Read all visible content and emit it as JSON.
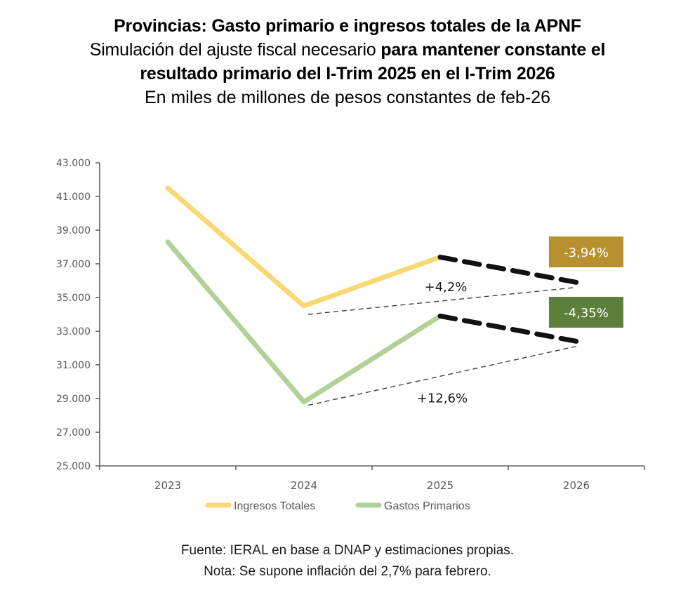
{
  "header": {
    "title": "Provincias: Gasto primario e ingresos totales de la APNF",
    "subtitle_plain": "Simulación del ajuste fiscal necesario ",
    "subtitle_bold_1": "para mantener constante el",
    "subtitle_bold_2": "resultado primario del I-Trim 2025 en el I-Trim 2026",
    "units": "En miles de millones de pesos constantes de feb-26"
  },
  "footer": {
    "source": "Fuente: IERAL en base a DNAP y estimaciones propias.",
    "note": "Nota: Se supone inflación del 2,7% para febrero."
  },
  "chart_data": {
    "type": "line",
    "title": "Provincias: Gasto primario e ingresos totales de la APNF",
    "xlabel": "",
    "ylabel": "",
    "categories": [
      "2023",
      "2024",
      "2025",
      "2026"
    ],
    "ylim": [
      25000,
      43000
    ],
    "yticks": [
      25000,
      27000,
      29000,
      31000,
      33000,
      35000,
      37000,
      39000,
      41000,
      43000
    ],
    "ytick_labels": [
      "25.000",
      "27.000",
      "29.000",
      "31.000",
      "33.000",
      "35.000",
      "37.000",
      "39.000",
      "41.000",
      "43.000"
    ],
    "grid": false,
    "legend_position": "bottom",
    "series": [
      {
        "name": "Ingresos Totales",
        "color": "#FAD872",
        "values": [
          41500,
          34500,
          37400,
          null
        ],
        "projection": {
          "from": "2025",
          "to": "2026",
          "values": [
            37400,
            35900
          ],
          "style": "bold-dashed",
          "color": "#111111"
        },
        "trend": {
          "from": "2024",
          "to": "2026",
          "values": [
            34000,
            35600
          ],
          "label": "+4,2%"
        },
        "badge": {
          "label": "-3,94%",
          "color": "#B8902E"
        }
      },
      {
        "name": "Gastos Primarios",
        "color": "#B2D196",
        "values": [
          38300,
          28800,
          33900,
          null
        ],
        "projection": {
          "from": "2025",
          "to": "2026",
          "values": [
            33900,
            32400
          ],
          "style": "bold-dashed",
          "color": "#111111"
        },
        "trend": {
          "from": "2024",
          "to": "2026",
          "values": [
            28600,
            32100
          ],
          "label": "+12,6%"
        },
        "badge": {
          "label": "-4,35%",
          "color": "#5C7F3C"
        }
      }
    ]
  }
}
